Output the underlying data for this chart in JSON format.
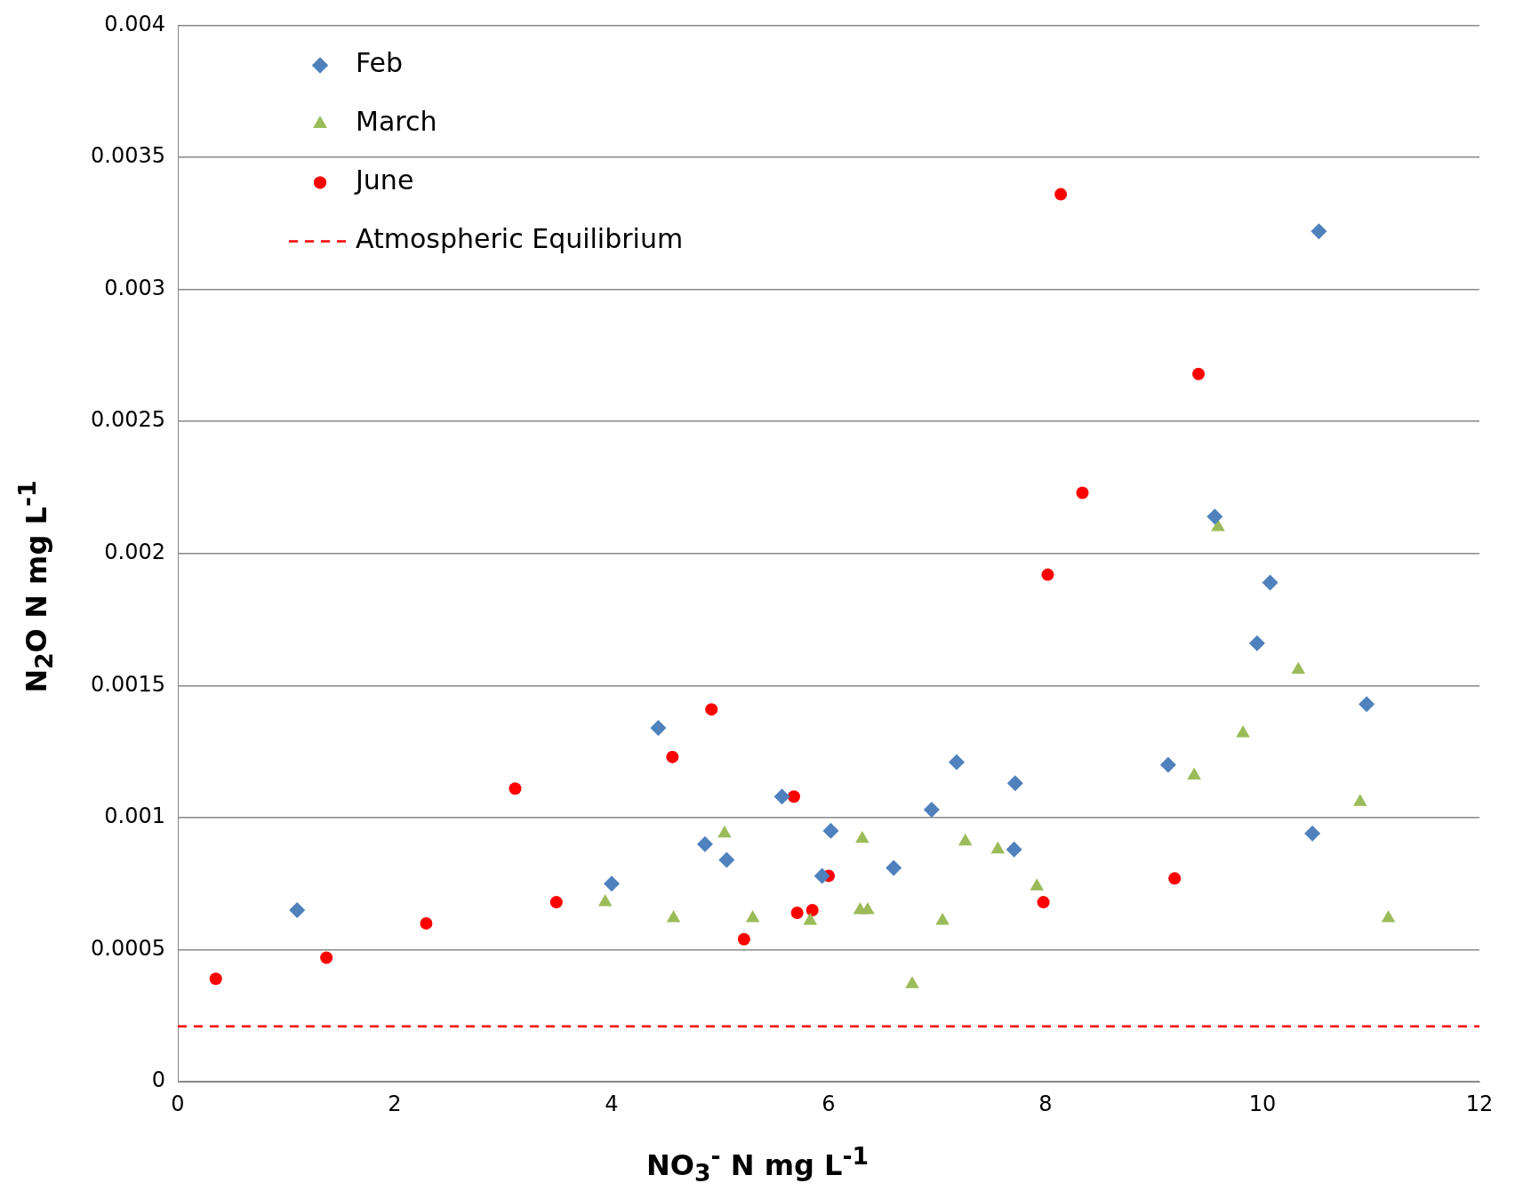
{
  "chart_data": {
    "type": "scatter",
    "xlabel": "NO$_{3}$$^{-}$ N mg L$^{-1}$",
    "ylabel": "N$_{2}$O N mg L$^{-1}$",
    "xlim": [
      0,
      12
    ],
    "xticks": [
      0,
      2,
      4,
      6,
      8,
      10,
      12
    ],
    "ylim": [
      0,
      0.004
    ],
    "yticks": [
      0,
      0.0005,
      0.001,
      0.0015,
      0.002,
      0.0025,
      0.003,
      0.0035,
      0.004
    ],
    "grid": "y",
    "legend": "top left",
    "series": [
      {
        "name": "Feb",
        "color": "#4f81bd",
        "marker": "diamond",
        "x": [
          1.1,
          4.0,
          4.43,
          4.86,
          5.06,
          5.57,
          5.94,
          6.02,
          6.6,
          6.95,
          7.18,
          7.72,
          7.71,
          9.13,
          9.56,
          10.07,
          9.95,
          10.52,
          10.46,
          10.96
        ],
        "values": [
          0.00065,
          0.00075,
          0.00134,
          0.0009,
          0.00084,
          0.00108,
          0.00078,
          0.00095,
          0.00081,
          0.00103,
          0.00121,
          0.00113,
          0.00088,
          0.0012,
          0.00214,
          0.00189,
          0.00166,
          0.00322,
          0.00094,
          0.00143
        ]
      },
      {
        "name": "March",
        "color": "#9bbb59",
        "marker": "triangle",
        "x": [
          3.94,
          4.57,
          5.04,
          5.3,
          5.83,
          6.31,
          6.29,
          6.36,
          6.77,
          7.05,
          7.26,
          7.56,
          7.92,
          9.37,
          9.59,
          9.82,
          10.33,
          10.9,
          11.16
        ],
        "values": [
          0.00068,
          0.00062,
          0.00094,
          0.00062,
          0.00061,
          0.00092,
          0.00065,
          0.00065,
          0.00037,
          0.00061,
          0.00091,
          0.00088,
          0.00074,
          0.00116,
          0.0021,
          0.00132,
          0.00156,
          0.00106,
          0.00062
        ]
      },
      {
        "name": "June",
        "color": "#ff0000",
        "marker": "circle",
        "x": [
          0.35,
          1.37,
          2.29,
          3.11,
          3.49,
          4.56,
          4.92,
          5.22,
          5.68,
          5.71,
          5.85,
          6.0,
          7.98,
          8.02,
          8.14,
          8.34,
          9.19,
          9.41
        ],
        "values": [
          0.00039,
          0.00047,
          0.0006,
          0.00111,
          0.00068,
          0.00123,
          0.00141,
          0.00054,
          0.00108,
          0.00064,
          0.00065,
          0.00078,
          0.00068,
          0.00192,
          0.00336,
          0.00223,
          0.00077,
          0.00268
        ]
      }
    ],
    "ref_lines": [
      {
        "axis": "y",
        "value": 0.00021,
        "label": "Atmospheric Equilibrium",
        "color": "#ff0000",
        "line_style": "dashed"
      }
    ]
  }
}
